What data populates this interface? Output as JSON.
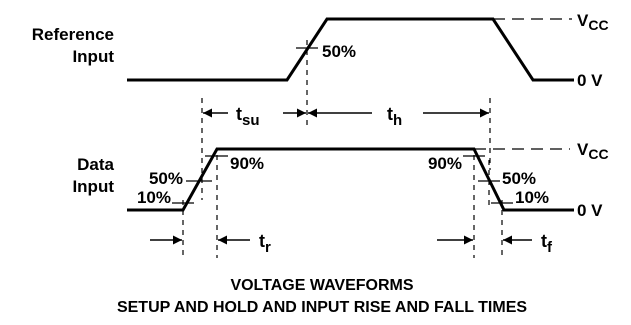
{
  "labels": {
    "reference_line1": "Reference",
    "reference_line2": "Input",
    "data_line1": "Data",
    "data_line2": "Input"
  },
  "levels": {
    "vcc_main": "V",
    "vcc_sub": "CC",
    "zero": "0 V"
  },
  "annotations": {
    "ref_50": "50%",
    "data_50_left": "50%",
    "data_10_left": "10%",
    "data_90_left": "90%",
    "data_90_right": "90%",
    "data_50_right": "50%",
    "data_10_right": "10%"
  },
  "timing": {
    "t": "t",
    "su": "su",
    "h": "h",
    "r": "r",
    "f": "f"
  },
  "caption": {
    "line1": "VOLTAGE WAVEFORMS",
    "line2": "SETUP AND HOLD AND INPUT RISE AND FALL TIMES"
  }
}
